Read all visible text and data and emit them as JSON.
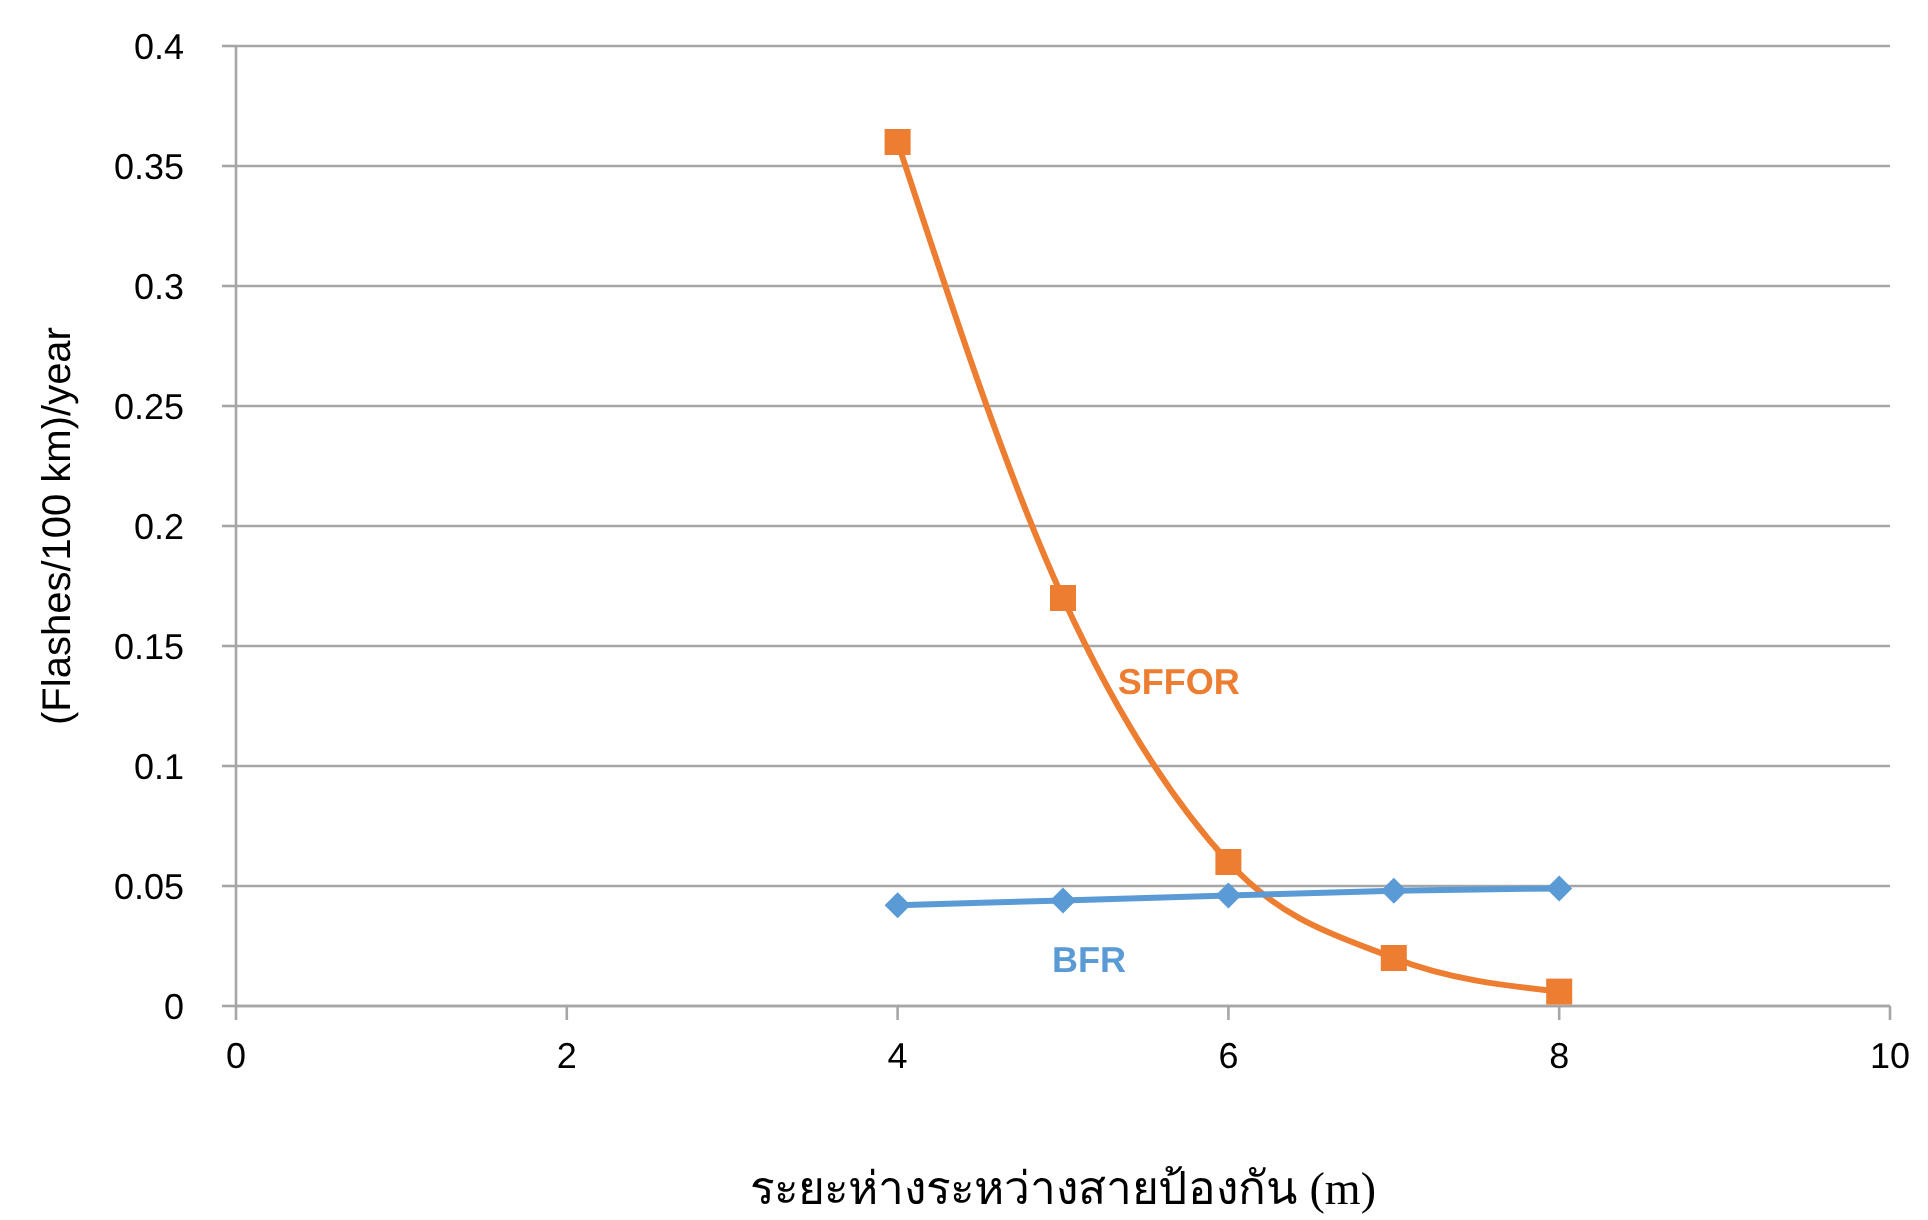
{
  "chart_data": {
    "type": "line",
    "xlabel": "ระยะห่างระหว่างสายป้องกัน (m)",
    "ylabel": "(Flashes/100 km)/year",
    "xlim": [
      0,
      10
    ],
    "xticks": [
      0,
      2,
      4,
      6,
      8,
      10
    ],
    "ylim": [
      0,
      0.4
    ],
    "yticks": [
      0,
      0.05,
      0.1,
      0.15,
      0.2,
      0.25,
      0.3,
      0.35,
      0.4
    ],
    "grid": "y",
    "series": [
      {
        "name": "SFFOR",
        "color": "#ed7d31",
        "marker": "square",
        "x": [
          4,
          5,
          6,
          7,
          8
        ],
        "values": [
          0.36,
          0.17,
          0.06,
          0.02,
          0.006
        ]
      },
      {
        "name": "BFR",
        "color": "#5b9bd5",
        "marker": "diamond",
        "x": [
          4,
          5,
          6,
          7,
          8
        ],
        "values": [
          0.042,
          0.044,
          0.046,
          0.048,
          0.049
        ]
      }
    ]
  }
}
